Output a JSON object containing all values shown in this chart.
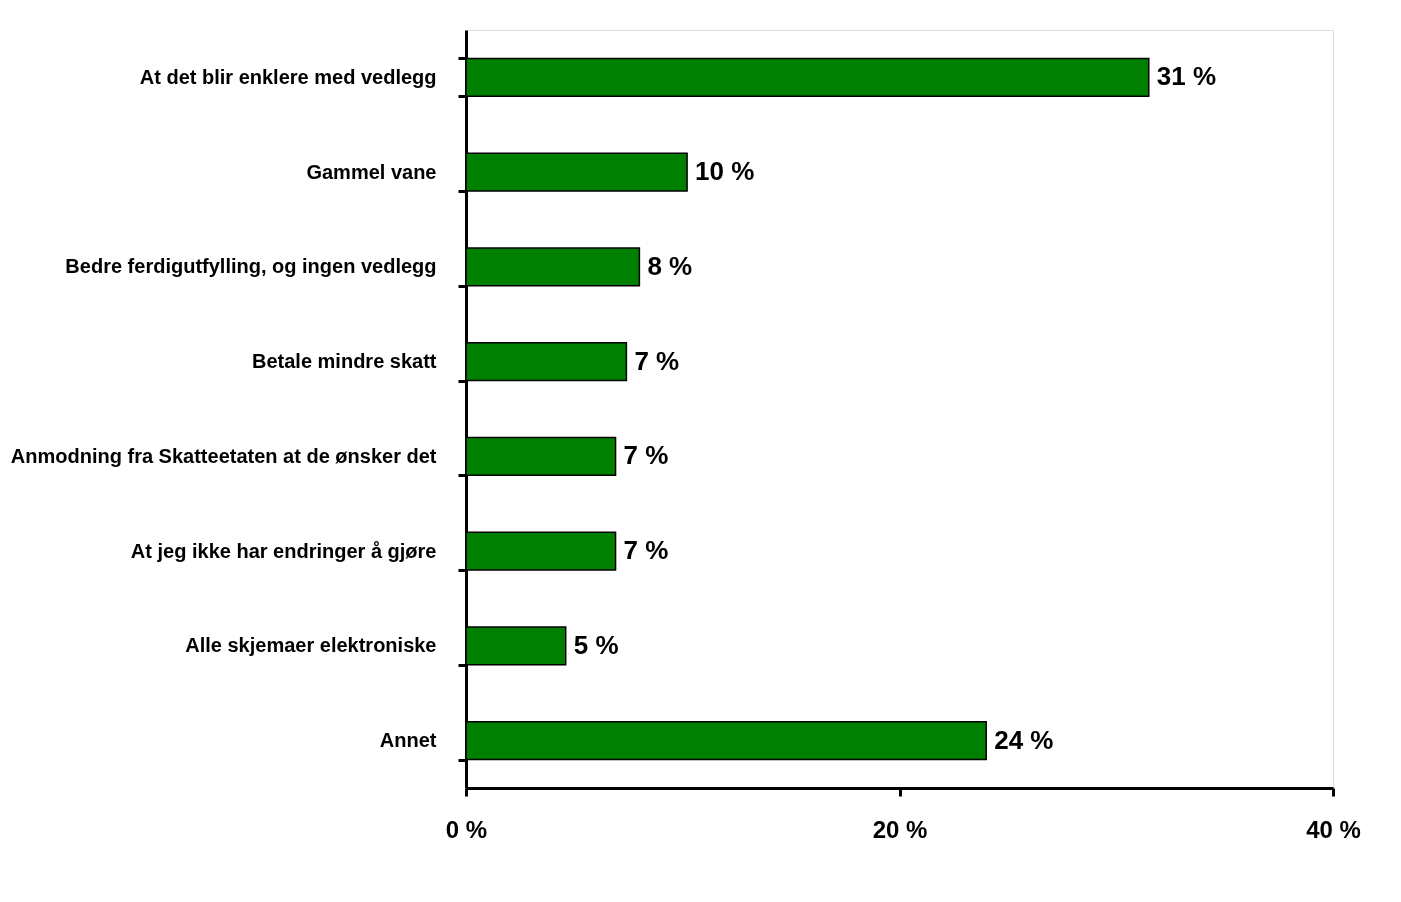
{
  "chart_data": {
    "type": "bar",
    "orientation": "horizontal",
    "categories": [
      "At det blir enklere med vedlegg",
      "Gammel vane",
      "Bedre ferdigutfylling, og ingen vedlegg",
      "Betale mindre skatt",
      "Anmodning fra Skatteetaten at de ønsker det",
      "At jeg ikke har endringer å gjøre",
      "Alle skjemaer elektroniske",
      "Annet"
    ],
    "values": [
      31.5,
      10.2,
      8.0,
      7.4,
      6.9,
      6.9,
      4.6,
      24.0
    ],
    "value_labels": [
      "31 %",
      "10 %",
      "8 %",
      "7 %",
      "7 %",
      "7 %",
      "5 %",
      "24 %"
    ],
    "color": "#008000",
    "xlim": [
      0,
      40
    ],
    "xticks": [
      {
        "value": 0,
        "label": "0 %"
      },
      {
        "value": 20,
        "label": "20 %"
      },
      {
        "value": 40,
        "label": "40 %"
      }
    ],
    "grid": false
  }
}
